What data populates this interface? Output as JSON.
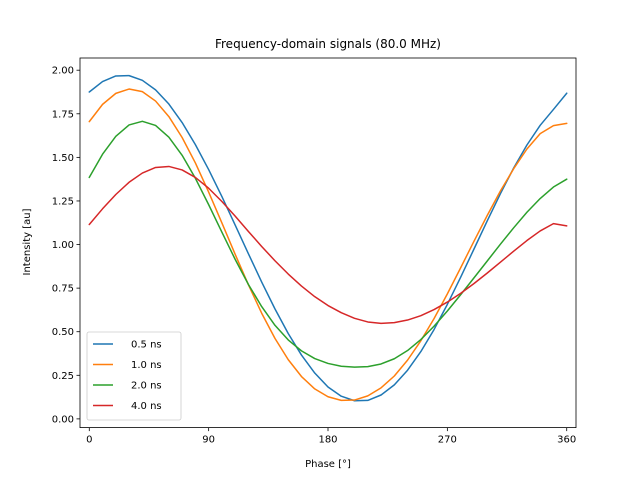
{
  "chart_data": {
    "type": "line",
    "title": "Frequency-domain signals (80.0 MHz)",
    "xlabel": "Phase [°]",
    "ylabel": "Intensity [au]",
    "xlim": [
      -7,
      367
    ],
    "ylim": [
      -0.05,
      2.07
    ],
    "xticks": [
      0,
      90,
      180,
      270,
      360
    ],
    "xtick_labels": [
      "0",
      "90",
      "180",
      "270",
      "360"
    ],
    "yticks": [
      0.0,
      0.25,
      0.5,
      0.75,
      1.0,
      1.25,
      1.5,
      1.75,
      2.0
    ],
    "ytick_labels": [
      "0.00",
      "0.25",
      "0.50",
      "0.75",
      "1.00",
      "1.25",
      "1.50",
      "1.75",
      "2.00"
    ],
    "grid": false,
    "legend_position": "lower-left",
    "x": [
      0,
      10,
      20,
      30,
      40,
      50,
      60,
      70,
      80,
      90,
      100,
      110,
      120,
      130,
      140,
      150,
      160,
      170,
      180,
      190,
      200,
      210,
      220,
      230,
      240,
      250,
      260,
      270,
      280,
      290,
      300,
      310,
      320,
      330,
      340,
      350,
      360
    ],
    "series": [
      {
        "name": "0.5 ns",
        "color": "#1f77b4",
        "values": [
          1.875,
          1.935,
          1.967,
          1.969,
          1.942,
          1.887,
          1.806,
          1.7,
          1.573,
          1.43,
          1.275,
          1.112,
          0.947,
          0.785,
          0.631,
          0.49,
          0.366,
          0.263,
          0.183,
          0.13,
          0.104,
          0.106,
          0.137,
          0.195,
          0.279,
          0.386,
          0.513,
          0.657,
          0.812,
          0.973,
          1.135,
          1.292,
          1.439,
          1.571,
          1.684,
          1.775,
          1.868
        ]
      },
      {
        "name": "1.0 ns",
        "color": "#ff7f0e",
        "values": [
          1.705,
          1.804,
          1.867,
          1.892,
          1.877,
          1.823,
          1.734,
          1.614,
          1.468,
          1.301,
          1.124,
          0.944,
          0.769,
          0.606,
          0.462,
          0.34,
          0.243,
          0.172,
          0.127,
          0.106,
          0.108,
          0.132,
          0.178,
          0.246,
          0.337,
          0.448,
          0.576,
          0.717,
          0.866,
          1.018,
          1.166,
          1.307,
          1.435,
          1.548,
          1.636,
          1.682,
          1.695
        ]
      },
      {
        "name": "2.0 ns",
        "color": "#2ca02c",
        "values": [
          1.385,
          1.518,
          1.621,
          1.686,
          1.707,
          1.683,
          1.616,
          1.512,
          1.38,
          1.229,
          1.071,
          0.915,
          0.771,
          0.644,
          0.537,
          0.453,
          0.39,
          0.346,
          0.318,
          0.302,
          0.297,
          0.3,
          0.315,
          0.345,
          0.392,
          0.455,
          0.532,
          0.619,
          0.712,
          0.808,
          0.905,
          1.002,
          1.096,
          1.185,
          1.264,
          1.33,
          1.375
        ]
      },
      {
        "name": "4.0 ns",
        "color": "#d62728",
        "values": [
          1.115,
          1.205,
          1.287,
          1.357,
          1.41,
          1.442,
          1.448,
          1.428,
          1.385,
          1.323,
          1.247,
          1.163,
          1.075,
          0.989,
          0.907,
          0.831,
          0.762,
          0.701,
          0.65,
          0.609,
          0.577,
          0.556,
          0.548,
          0.552,
          0.567,
          0.592,
          0.627,
          0.67,
          0.72,
          0.776,
          0.836,
          0.899,
          0.962,
          1.023,
          1.078,
          1.12,
          1.107
        ]
      }
    ]
  },
  "colors": {
    "background": "#ffffff",
    "axes": "#000000"
  }
}
